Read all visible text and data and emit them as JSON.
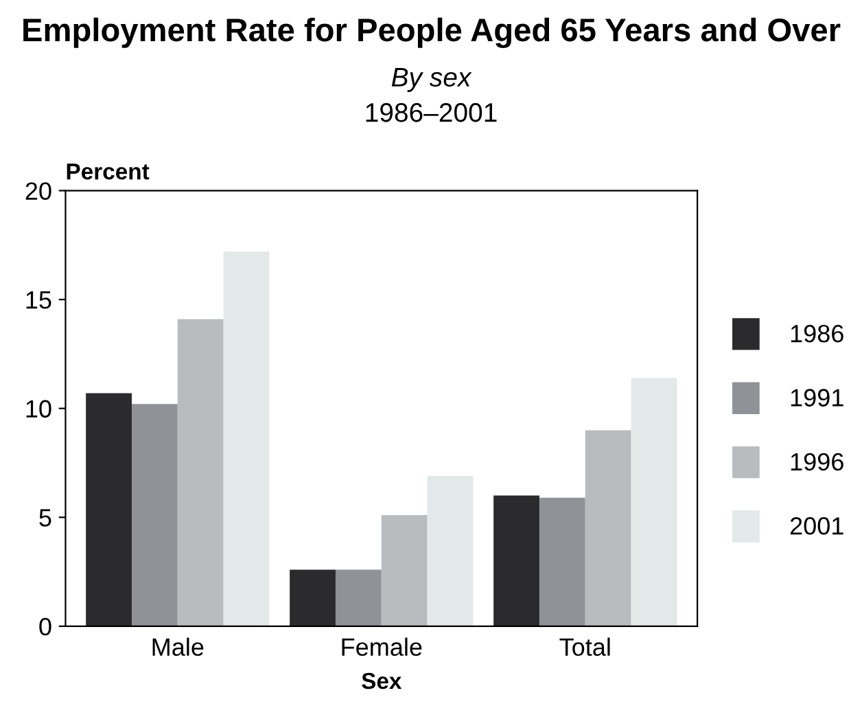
{
  "chart_data": {
    "type": "bar",
    "title": "Employment Rate for People Aged 65 Years and Over",
    "subtitle": "By sex",
    "annotations": [
      "1986–2001"
    ],
    "ylabel": "Percent",
    "xlabel": "Sex",
    "categories": [
      "Male",
      "Female",
      "Total"
    ],
    "series": [
      {
        "name": "1986",
        "color": "#2b2a2c",
        "values": [
          10.7,
          2.6,
          6.0
        ]
      },
      {
        "name": "1991",
        "color": "#8f9296",
        "values": [
          10.2,
          2.6,
          5.9
        ]
      },
      {
        "name": "1996",
        "color": "#b9bcbf",
        "values": [
          14.1,
          5.1,
          9.0
        ]
      },
      {
        "name": "2001",
        "color": "#e3e8e8",
        "values": [
          17.2,
          6.9,
          11.4
        ]
      }
    ],
    "ylim": [
      0,
      20
    ],
    "yticks": [
      0,
      5,
      10,
      15,
      20
    ],
    "grid": false,
    "legend": "right"
  }
}
